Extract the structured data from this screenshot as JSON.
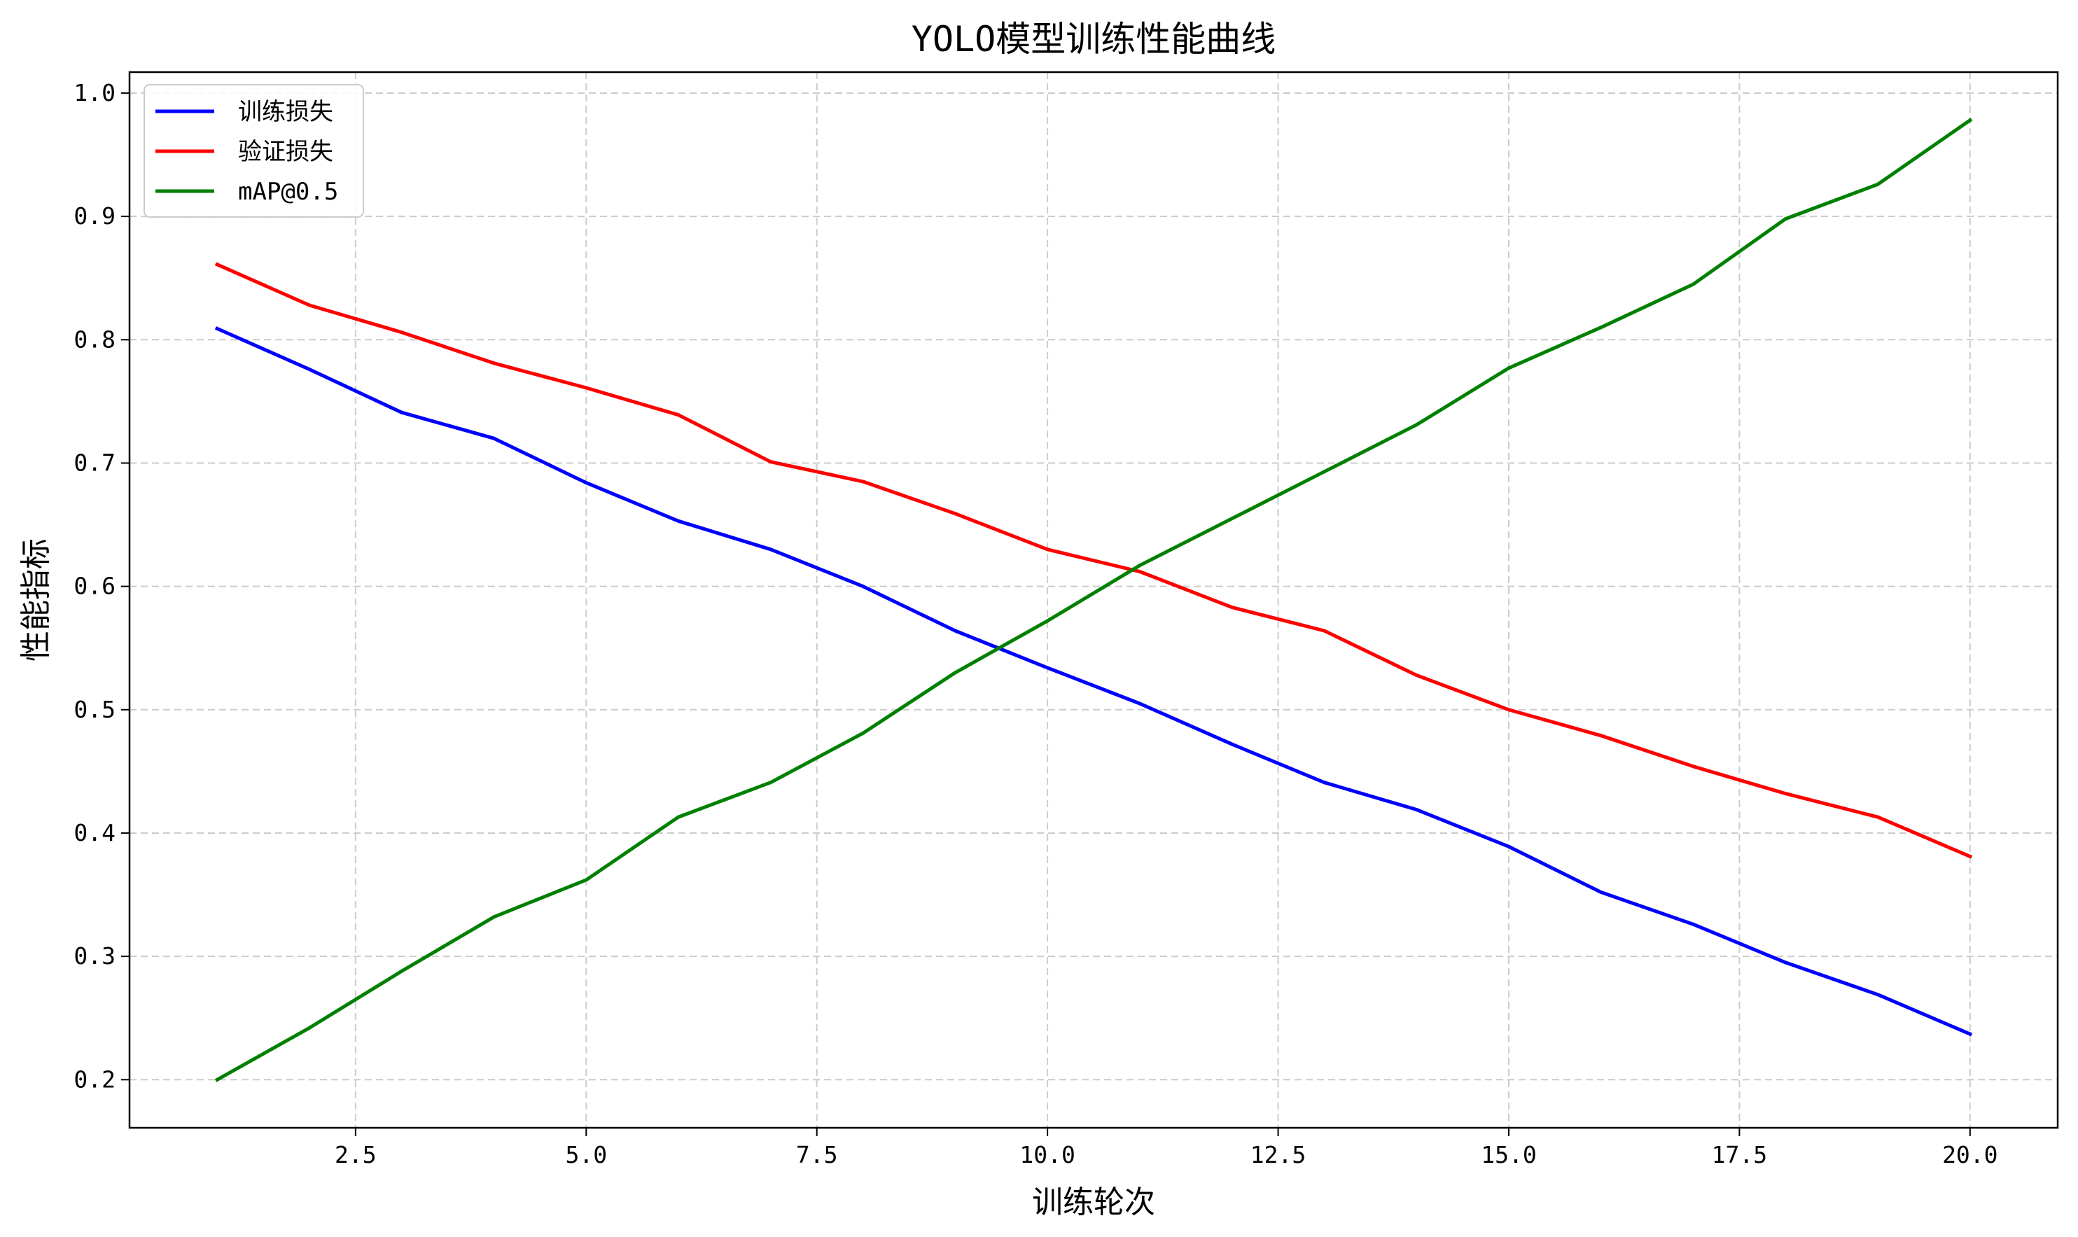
{
  "chart_data": {
    "type": "line",
    "title": "YOLO模型训练性能曲线",
    "xlabel": "训练轮次",
    "ylabel": "性能指标",
    "x": [
      1,
      2,
      3,
      4,
      5,
      6,
      7,
      8,
      9,
      10,
      11,
      12,
      13,
      14,
      15,
      16,
      17,
      18,
      19,
      20
    ],
    "series": [
      {
        "name": "训练损失",
        "color": "#0000ff",
        "values": [
          0.809,
          0.776,
          0.741,
          0.72,
          0.684,
          0.653,
          0.63,
          0.6,
          0.564,
          0.534,
          0.505,
          0.472,
          0.441,
          0.419,
          0.389,
          0.352,
          0.326,
          0.295,
          0.269,
          0.237
        ]
      },
      {
        "name": "验证损失",
        "color": "#ff0000",
        "values": [
          0.861,
          0.828,
          0.806,
          0.781,
          0.761,
          0.739,
          0.701,
          0.685,
          0.659,
          0.63,
          0.612,
          0.583,
          0.564,
          0.528,
          0.5,
          0.479,
          0.454,
          0.432,
          0.413,
          0.381
        ]
      },
      {
        "name": "mAP@0.5",
        "color": "#008000",
        "values": [
          0.2,
          0.242,
          0.288,
          0.332,
          0.362,
          0.413,
          0.441,
          0.481,
          0.53,
          0.572,
          0.617,
          0.655,
          0.693,
          0.731,
          0.777,
          0.81,
          0.845,
          0.898,
          0.926,
          0.978
        ]
      }
    ],
    "xlim": [
      0.05,
      20.95
    ],
    "ylim": [
      0.161,
      1.017
    ],
    "xticks": [
      2.5,
      5.0,
      7.5,
      10.0,
      12.5,
      15.0,
      17.5,
      20.0
    ],
    "xtick_labels": [
      "2.5",
      "5.0",
      "7.5",
      "10.0",
      "12.5",
      "15.0",
      "17.5",
      "20.0"
    ],
    "yticks": [
      0.2,
      0.3,
      0.4,
      0.5,
      0.6,
      0.7,
      0.8,
      0.9,
      1.0
    ],
    "ytick_labels": [
      "0.2",
      "0.3",
      "0.4",
      "0.5",
      "0.6",
      "0.7",
      "0.8",
      "0.9",
      "1.0"
    ],
    "grid": true,
    "legend_position": "top-left"
  }
}
